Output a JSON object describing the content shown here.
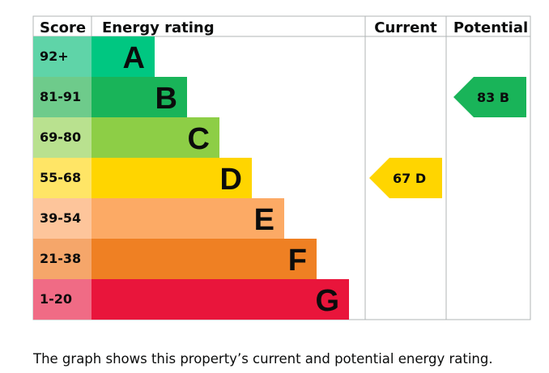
{
  "headers": {
    "score": "Score",
    "energy_rating": "Energy rating",
    "current": "Current",
    "potential": "Potential"
  },
  "chart_data": {
    "type": "bar",
    "categories": [
      "A",
      "B",
      "C",
      "D",
      "E",
      "F",
      "G"
    ],
    "score_ranges": [
      "92+",
      "81-91",
      "69-80",
      "55-68",
      "39-54",
      "21-38",
      "1-20"
    ],
    "band_colors": [
      "#00c781",
      "#19b459",
      "#8dce46",
      "#ffd500",
      "#fcaa65",
      "#ef8023",
      "#e9153b"
    ],
    "score_cell_colors": [
      "#5fd4a8",
      "#6ecb8b",
      "#b9e18f",
      "#ffe566",
      "#fdc59b",
      "#f5a66a",
      "#f06b85"
    ],
    "current": {
      "score": 67,
      "band": "D",
      "label": "67  D",
      "color": "#ffd500"
    },
    "potential": {
      "score": 83,
      "band": "B",
      "label": "83  B",
      "color": "#19b459"
    }
  },
  "caption": "The graph shows this property’s current and potential energy rating."
}
